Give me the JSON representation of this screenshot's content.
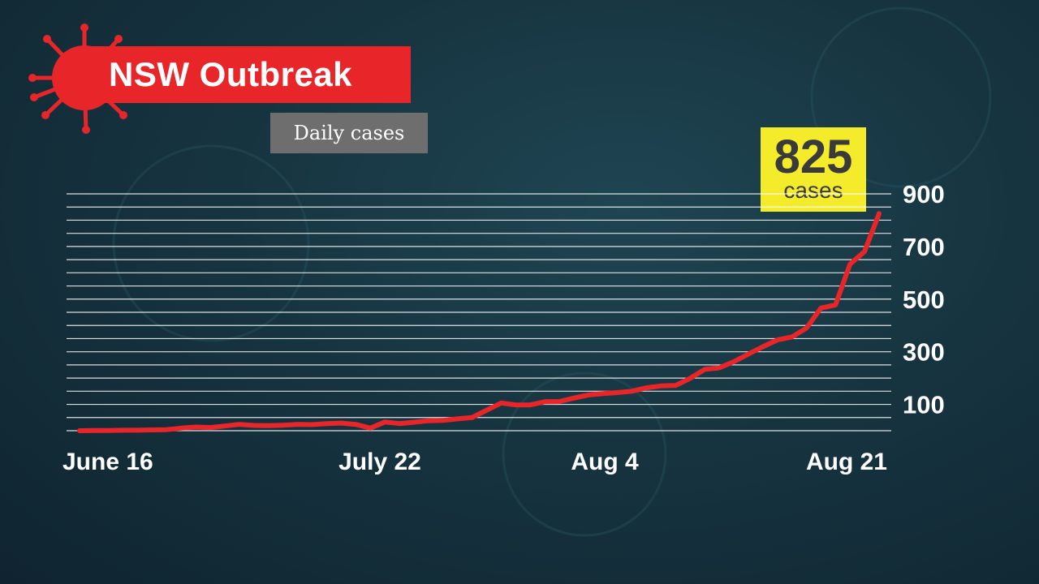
{
  "header": {
    "title": "NSW Outbreak",
    "subtitle": "Daily cases"
  },
  "callout": {
    "value": "825",
    "unit": "cases"
  },
  "colors": {
    "line": "#e8262a",
    "title_bg": "#e8262a",
    "callout_bg": "#f4ec2a",
    "grid": "#ffffff"
  },
  "chart_data": {
    "type": "line",
    "title": "NSW Outbreak",
    "subtitle": "Daily cases",
    "x_tick_labels": [
      "June 16",
      "July 22",
      "Aug 4",
      "Aug 21"
    ],
    "y_ticks": [
      100,
      300,
      500,
      700,
      900
    ],
    "ylim": [
      0,
      900
    ],
    "grid": true,
    "series": [
      {
        "values": [
          0,
          1,
          1,
          2,
          2,
          3,
          4,
          10,
          14,
          12,
          18,
          24,
          20,
          19,
          21,
          24,
          23,
          27,
          29,
          24,
          10,
          33,
          27,
          32,
          38,
          39,
          45,
          50,
          78,
          105,
          98,
          98,
          110,
          111,
          124,
          136,
          141,
          145,
          150,
          163,
          170,
          172,
          199,
          233,
          239,
          262,
          291,
          319,
          345,
          356,
          390,
          466,
          478,
          633,
          681,
          825
        ]
      }
    ]
  }
}
